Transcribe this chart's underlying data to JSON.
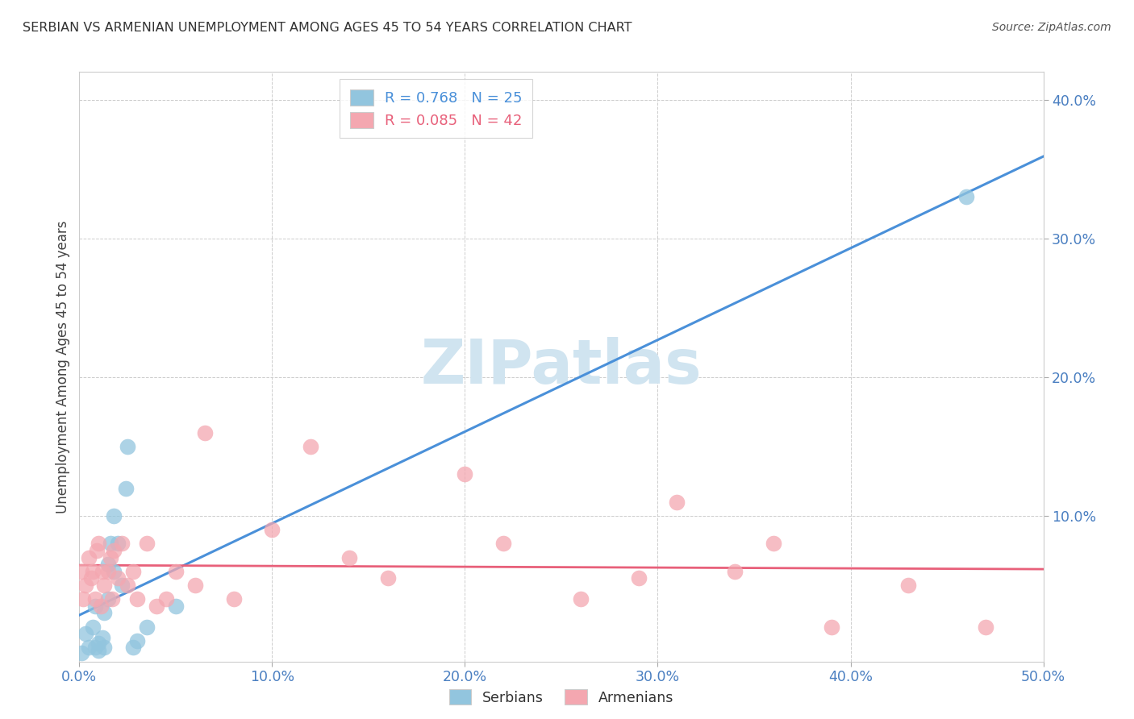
{
  "title": "SERBIAN VS ARMENIAN UNEMPLOYMENT AMONG AGES 45 TO 54 YEARS CORRELATION CHART",
  "source": "Source: ZipAtlas.com",
  "ylabel": "Unemployment Among Ages 45 to 54 years",
  "xlim": [
    0.0,
    0.5
  ],
  "ylim": [
    -0.005,
    0.42
  ],
  "xticks": [
    0.0,
    0.1,
    0.2,
    0.3,
    0.4,
    0.5
  ],
  "yticks": [
    0.1,
    0.2,
    0.3,
    0.4
  ],
  "ytick_labels": [
    "10.0%",
    "20.0%",
    "30.0%",
    "40.0%"
  ],
  "xtick_labels": [
    "0.0%",
    "10.0%",
    "20.0%",
    "30.0%",
    "40.0%",
    "50.0%"
  ],
  "serbian_R": 0.768,
  "serbian_N": 25,
  "armenian_R": 0.085,
  "armenian_N": 42,
  "serbian_color": "#92c5de",
  "armenian_color": "#f4a7b0",
  "serbian_line_color": "#4a90d9",
  "armenian_line_color": "#e8607a",
  "watermark_color": "#d0e4f0",
  "tick_color": "#4a7fc1",
  "serbian_x": [
    0.001,
    0.003,
    0.005,
    0.007,
    0.008,
    0.008,
    0.01,
    0.01,
    0.012,
    0.013,
    0.013,
    0.015,
    0.015,
    0.016,
    0.018,
    0.018,
    0.02,
    0.022,
    0.024,
    0.025,
    0.028,
    0.03,
    0.035,
    0.05,
    0.46
  ],
  "serbian_y": [
    0.001,
    0.015,
    0.005,
    0.02,
    0.005,
    0.035,
    0.003,
    0.008,
    0.012,
    0.005,
    0.03,
    0.065,
    0.04,
    0.08,
    0.06,
    0.1,
    0.08,
    0.05,
    0.12,
    0.15,
    0.005,
    0.01,
    0.02,
    0.035,
    0.33
  ],
  "armenian_x": [
    0.001,
    0.002,
    0.003,
    0.005,
    0.006,
    0.007,
    0.008,
    0.009,
    0.01,
    0.011,
    0.012,
    0.013,
    0.015,
    0.016,
    0.017,
    0.018,
    0.02,
    0.022,
    0.025,
    0.028,
    0.03,
    0.035,
    0.04,
    0.045,
    0.05,
    0.06,
    0.065,
    0.08,
    0.1,
    0.12,
    0.14,
    0.16,
    0.2,
    0.22,
    0.26,
    0.29,
    0.31,
    0.34,
    0.36,
    0.39,
    0.43,
    0.47
  ],
  "armenian_y": [
    0.06,
    0.04,
    0.05,
    0.07,
    0.055,
    0.06,
    0.04,
    0.075,
    0.08,
    0.035,
    0.06,
    0.05,
    0.06,
    0.07,
    0.04,
    0.075,
    0.055,
    0.08,
    0.05,
    0.06,
    0.04,
    0.08,
    0.035,
    0.04,
    0.06,
    0.05,
    0.16,
    0.04,
    0.09,
    0.15,
    0.07,
    0.055,
    0.13,
    0.08,
    0.04,
    0.055,
    0.11,
    0.06,
    0.08,
    0.02,
    0.05,
    0.02
  ]
}
